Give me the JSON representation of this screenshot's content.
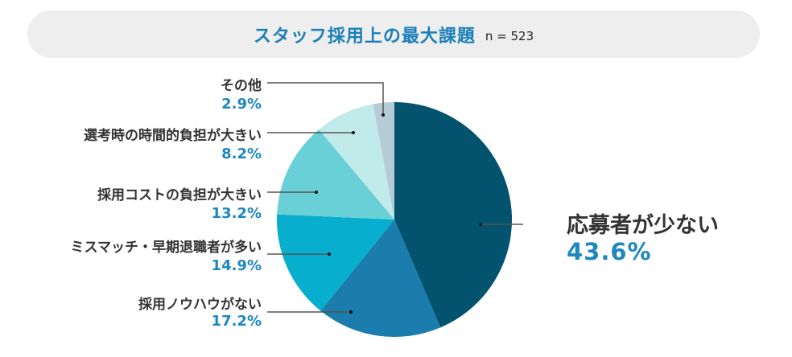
{
  "chart_data": {
    "type": "pie",
    "title": "スタッフ採用上の最大課題",
    "sample_size": "n = 523",
    "slices": [
      {
        "label": "応募者が少ない",
        "value": 43.6,
        "display": "43.6%",
        "color": "#03536f"
      },
      {
        "label": "採用ノウハウがない",
        "value": 17.2,
        "display": "17.2%",
        "color": "#1a7dad"
      },
      {
        "label": "ミスマッチ・早期退職者が多い",
        "value": 14.9,
        "display": "14.9%",
        "color": "#07aece"
      },
      {
        "label": "採用コストの負担が大きい",
        "value": 13.2,
        "display": "13.2%",
        "color": "#68d0d6"
      },
      {
        "label": "選考時の時間的負担が大きい",
        "value": 8.2,
        "display": "8.2%",
        "color": "#c1eaea"
      },
      {
        "label": "その他",
        "value": 2.9,
        "display": "2.9%",
        "color": "#b5cbd8"
      }
    ],
    "start": "top",
    "direction": "clockwise"
  }
}
